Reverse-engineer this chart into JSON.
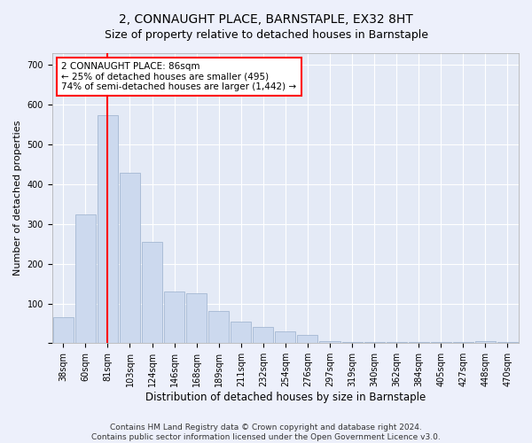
{
  "title": "2, CONNAUGHT PLACE, BARNSTAPLE, EX32 8HT",
  "subtitle": "Size of property relative to detached houses in Barnstaple",
  "xlabel": "Distribution of detached houses by size in Barnstaple",
  "ylabel": "Number of detached properties",
  "categories": [
    "38sqm",
    "60sqm",
    "81sqm",
    "103sqm",
    "124sqm",
    "146sqm",
    "168sqm",
    "189sqm",
    "211sqm",
    "232sqm",
    "254sqm",
    "276sqm",
    "297sqm",
    "319sqm",
    "340sqm",
    "362sqm",
    "384sqm",
    "405sqm",
    "427sqm",
    "448sqm",
    "470sqm"
  ],
  "values": [
    65,
    325,
    575,
    430,
    255,
    130,
    125,
    80,
    55,
    40,
    30,
    20,
    5,
    2,
    2,
    2,
    2,
    2,
    2,
    5,
    2
  ],
  "bar_color": "#ccd9ee",
  "bar_edge_color": "#9ab0cc",
  "vline_x": 2.0,
  "vline_color": "red",
  "annotation_text": "2 CONNAUGHT PLACE: 86sqm\n← 25% of detached houses are smaller (495)\n74% of semi-detached houses are larger (1,442) →",
  "annotation_box_color": "white",
  "annotation_box_edge": "red",
  "background_color": "#edf0fb",
  "plot_bg_color": "#e4eaf6",
  "grid_color": "white",
  "footer": "Contains HM Land Registry data © Crown copyright and database right 2024.\nContains public sector information licensed under the Open Government Licence v3.0.",
  "ylim": [
    0,
    730
  ],
  "yticks": [
    0,
    100,
    200,
    300,
    400,
    500,
    600,
    700
  ],
  "title_fontsize": 10,
  "subtitle_fontsize": 9,
  "xlabel_fontsize": 8.5,
  "ylabel_fontsize": 8,
  "tick_fontsize": 7,
  "footer_fontsize": 6.5,
  "annotation_fontsize": 7.5
}
